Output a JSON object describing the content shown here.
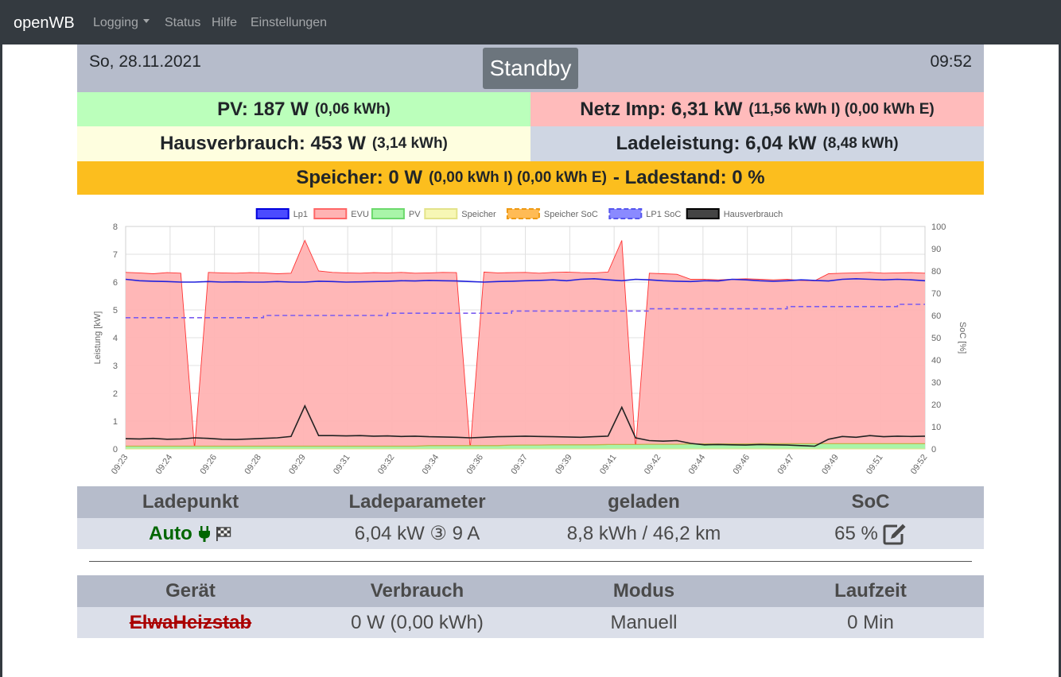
{
  "nav": {
    "brand": "openWB",
    "items": [
      {
        "label": "Logging",
        "dropdown": true
      },
      {
        "label": "Status",
        "dropdown": false
      },
      {
        "label": "Hilfe",
        "dropdown": false
      },
      {
        "label": "Einstellungen",
        "dropdown": false
      }
    ]
  },
  "header": {
    "date": "So, 28.11.2021",
    "status_button": "Standby",
    "time": "09:52"
  },
  "tiles": {
    "pv": {
      "main": "PV: 187 W",
      "sub": "(0,06 kWh)",
      "color": "#bbffbb"
    },
    "netz": {
      "main": "Netz Imp: 6,31 kW",
      "sub": "(11,56 kWh I) (0,00 kWh E)",
      "color": "#ffbbbb"
    },
    "haus": {
      "main": "Hausverbrauch: 453 W",
      "sub": "(3,14 kWh)",
      "color": "#fefedf"
    },
    "lade": {
      "main": "Ladeleistung: 6,04 kW",
      "sub": "(8,48 kWh)",
      "color": "#cfd6e3"
    },
    "speicher": {
      "main": "Speicher: 0 W",
      "sub": "(0,00 kWh I) (0,00 kWh E)",
      "tail": "- Ladestand: 0 %",
      "color": "#fcbe1e"
    }
  },
  "chart_data": {
    "type": "line",
    "ylabel": "Leistung [kW]",
    "y2label": "SoC [%]",
    "ylim": [
      0,
      8
    ],
    "y2lim": [
      0,
      100
    ],
    "yticks": [
      "0",
      "1",
      "2",
      "3",
      "4",
      "5",
      "6",
      "7",
      "8"
    ],
    "y2ticks": [
      "0",
      "10",
      "20",
      "30",
      "40",
      "50",
      "60",
      "70",
      "80",
      "90",
      "100"
    ],
    "xticks": [
      "09:23",
      "09:24",
      "09:26",
      "09:28",
      "09:29",
      "09:31",
      "09:32",
      "09:34",
      "09:36",
      "09:37",
      "09:39",
      "09:41",
      "09:42",
      "09:44",
      "09:46",
      "09:47",
      "09:49",
      "09:51",
      "09:52"
    ],
    "grid": true,
    "legend_position": "top",
    "legend": [
      {
        "name": "Lp1",
        "fill": "#4b4bff",
        "stroke": "#0000dd",
        "dashed": false
      },
      {
        "name": "EVU",
        "fill": "#ffb3b3",
        "stroke": "#ff6666",
        "dashed": false
      },
      {
        "name": "PV",
        "fill": "#a9f5a9",
        "stroke": "#6cd96c",
        "dashed": false
      },
      {
        "name": "Speicher",
        "fill": "#f7f7b5",
        "stroke": "#e3e38a",
        "dashed": false
      },
      {
        "name": "Speicher SoC",
        "fill": "#ffbb55",
        "stroke": "#ee9911",
        "dashed": true
      },
      {
        "name": "LP1 SoC",
        "fill": "#8a8aff",
        "stroke": "#5555ee",
        "dashed": true
      },
      {
        "name": "Hausverbrauch",
        "fill": "#444444",
        "stroke": "#000000",
        "dashed": false
      }
    ],
    "x": [
      "09:23",
      "09:23",
      "09:24",
      "09:24",
      "09:25",
      "09:25",
      "09:26",
      "09:26",
      "09:27",
      "09:27",
      "09:28",
      "09:28",
      "09:29",
      "09:29",
      "09:30",
      "09:30",
      "09:31",
      "09:31",
      "09:32",
      "09:32",
      "09:33",
      "09:33",
      "09:34",
      "09:34",
      "09:35",
      "09:35",
      "09:36",
      "09:36",
      "09:37",
      "09:37",
      "09:38",
      "09:38",
      "09:39",
      "09:39",
      "09:40",
      "09:40",
      "09:41",
      "09:41",
      "09:42",
      "09:42",
      "09:43",
      "09:43",
      "09:44",
      "09:44",
      "09:45",
      "09:45",
      "09:46",
      "09:46",
      "09:47",
      "09:47",
      "09:48",
      "09:48",
      "09:49",
      "09:49",
      "09:50",
      "09:50",
      "09:51",
      "09:51",
      "09:52"
    ],
    "series": [
      {
        "name": "EVU",
        "values": [
          6.35,
          6.33,
          6.3,
          6.34,
          6.32,
          0.0,
          6.35,
          6.33,
          6.32,
          6.34,
          6.33,
          6.3,
          6.32,
          7.5,
          6.4,
          6.35,
          6.33,
          6.32,
          6.34,
          6.33,
          6.35,
          6.32,
          6.33,
          6.35,
          6.34,
          0.0,
          6.36,
          6.33,
          6.34,
          6.35,
          6.32,
          6.35,
          6.36,
          6.34,
          6.33,
          6.36,
          7.5,
          0.0,
          6.32,
          6.3,
          6.28,
          6.1,
          6.1,
          6.08,
          6.1,
          6.12,
          6.1,
          6.08,
          6.1,
          6.06,
          6.05,
          6.3,
          6.32,
          6.33,
          6.35,
          6.32,
          6.33,
          6.34,
          6.32
        ]
      },
      {
        "name": "Lp1",
        "values": [
          6.1,
          6.05,
          6.03,
          6.02,
          6.0,
          6.0,
          6.02,
          6.0,
          6.01,
          6.0,
          6.0,
          6.02,
          6.0,
          6.0,
          6.03,
          6.02,
          6.0,
          6.01,
          6.02,
          6.03,
          6.05,
          6.04,
          6.06,
          6.05,
          6.04,
          6.02,
          6.0,
          6.02,
          6.03,
          6.05,
          6.06,
          6.08,
          6.05,
          6.1,
          6.12,
          6.08,
          6.05,
          6.1,
          6.08,
          6.05,
          6.03,
          6.02,
          6.05,
          6.04,
          6.1,
          6.08,
          6.05,
          6.03,
          6.05,
          6.08,
          6.06,
          6.04,
          6.1,
          6.12,
          6.1,
          6.08,
          6.1,
          6.08,
          6.05
        ]
      },
      {
        "name": "Hausverbrauch",
        "values": [
          0.37,
          0.36,
          0.38,
          0.35,
          0.36,
          0.4,
          0.38,
          0.35,
          0.34,
          0.36,
          0.38,
          0.4,
          0.45,
          1.55,
          0.48,
          0.48,
          0.47,
          0.48,
          0.46,
          0.47,
          0.45,
          0.46,
          0.44,
          0.43,
          0.42,
          0.4,
          0.42,
          0.44,
          0.45,
          0.46,
          0.45,
          0.44,
          0.43,
          0.42,
          0.44,
          0.46,
          1.5,
          0.4,
          0.3,
          0.28,
          0.3,
          0.2,
          0.15,
          0.16,
          0.15,
          0.14,
          0.16,
          0.15,
          0.14,
          0.12,
          0.1,
          0.35,
          0.45,
          0.42,
          0.48,
          0.44,
          0.46,
          0.45,
          0.46
        ]
      },
      {
        "name": "PV",
        "values": [
          0.1,
          0.1,
          0.1,
          0.1,
          0.1,
          0.1,
          0.1,
          0.1,
          0.1,
          0.1,
          0.1,
          0.1,
          0.1,
          0.1,
          0.1,
          0.1,
          0.1,
          0.1,
          0.1,
          0.1,
          0.1,
          0.1,
          0.12,
          0.12,
          0.12,
          0.12,
          0.12,
          0.12,
          0.14,
          0.14,
          0.14,
          0.15,
          0.15,
          0.15,
          0.15,
          0.16,
          0.16,
          0.16,
          0.17,
          0.17,
          0.17,
          0.18,
          0.18,
          0.18,
          0.18,
          0.18,
          0.19,
          0.19,
          0.19,
          0.19,
          0.19,
          0.19,
          0.19,
          0.19,
          0.19,
          0.19,
          0.19,
          0.19,
          0.19
        ]
      },
      {
        "name": "Speicher",
        "values": [
          0,
          0,
          0,
          0,
          0,
          0,
          0,
          0,
          0,
          0,
          0,
          0,
          0,
          0,
          0,
          0,
          0,
          0,
          0,
          0,
          0,
          0,
          0,
          0,
          0,
          0,
          0,
          0,
          0,
          0,
          0,
          0,
          0,
          0,
          0,
          0,
          0,
          0,
          0,
          0,
          0,
          0,
          0,
          0,
          0,
          0,
          0,
          0,
          0,
          0,
          0,
          0,
          0,
          0,
          0,
          0,
          0,
          0,
          0
        ]
      },
      {
        "name": "LP1 SoC",
        "axis": "right",
        "values": [
          59,
          59,
          59,
          59,
          59,
          59,
          59,
          59,
          59,
          59,
          60,
          60,
          60,
          60,
          60,
          60,
          60,
          60,
          60,
          61,
          61,
          61,
          61,
          61,
          61,
          61,
          61,
          61,
          62,
          62,
          62,
          62,
          62,
          62,
          62,
          62,
          62,
          62,
          63,
          63,
          63,
          63,
          63,
          63,
          63,
          63,
          63,
          63,
          64,
          64,
          64,
          64,
          64,
          64,
          64,
          64,
          65,
          65,
          65
        ]
      },
      {
        "name": "Speicher SoC",
        "axis": "right",
        "values": [
          0,
          0,
          0,
          0,
          0,
          0,
          0,
          0,
          0,
          0,
          0,
          0,
          0,
          0,
          0,
          0,
          0,
          0,
          0,
          0,
          0,
          0,
          0,
          0,
          0,
          0,
          0,
          0,
          0,
          0,
          0,
          0,
          0,
          0,
          0,
          0,
          0,
          0,
          0,
          0,
          0,
          0,
          0,
          0,
          0,
          0,
          0,
          0,
          0,
          0,
          0,
          0,
          0,
          0,
          0,
          0,
          0,
          0,
          0
        ]
      }
    ]
  },
  "ladepunkt_table": {
    "headers": [
      "Ladepunkt",
      "Ladeparameter",
      "geladen",
      "SoC"
    ],
    "row": {
      "mode": "Auto",
      "mode_color": "#006600",
      "parameter": "6,04 kW ③ 9 A",
      "geladen": "8,8 kWh / 46,2 km",
      "soc": "65 %"
    }
  },
  "geraete_table": {
    "headers": [
      "Gerät",
      "Verbrauch",
      "Modus",
      "Laufzeit"
    ],
    "row": {
      "name": "ElwaHeizstab",
      "name_color": "#aa0000",
      "verbrauch": "0 W (0,00 kWh)",
      "modus": "Manuell",
      "laufzeit": "0 Min"
    }
  }
}
